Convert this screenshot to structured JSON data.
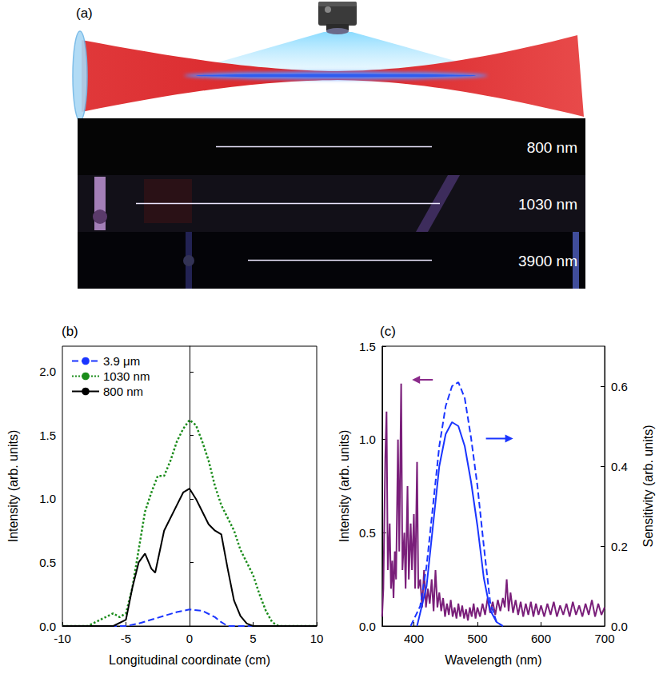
{
  "diagram": {
    "label": "(a)",
    "images": [
      {
        "label": "800 nm"
      },
      {
        "label": "1030 nm"
      },
      {
        "label": "3900 nm"
      }
    ]
  },
  "chart_data": [
    {
      "type": "line",
      "title": "(b)",
      "x_label": "Longitudinal coordinate (cm)",
      "y_label": "Intensity (arb. units)",
      "xlim": [
        -10,
        10
      ],
      "xticks": [
        -10,
        -5,
        0,
        5,
        10
      ],
      "ylim": [
        0,
        2.2
      ],
      "yticks": [
        {
          "value": 0,
          "label": "0.0"
        },
        {
          "value": 0.5,
          "label": "0.5"
        },
        {
          "value": 1,
          "label": "1.0"
        },
        {
          "value": 1.5,
          "label": "1.5"
        },
        {
          "value": 2,
          "label": "2.0"
        }
      ],
      "legend": "upper left",
      "series": [
        {
          "name": "3.9 μm",
          "color": "#1a35ff",
          "line_style": "dashed",
          "x": [
            -10,
            -5,
            -4,
            -3,
            -2,
            -1,
            0,
            1,
            2,
            2.5,
            3,
            10
          ],
          "values": [
            0,
            0,
            0.02,
            0.05,
            0.08,
            0.11,
            0.13,
            0.12,
            0.07,
            0.03,
            0,
            0
          ]
        },
        {
          "name": "1030 nm",
          "color": "#1a8c1a",
          "line_style": "dotted",
          "x": [
            -10,
            -8,
            -7,
            -6,
            -5.5,
            -5,
            -4.5,
            -4,
            -3.5,
            -3,
            -2.5,
            -2,
            -1.5,
            -1,
            -0.5,
            0,
            0.5,
            1,
            1.5,
            2,
            2.5,
            3,
            3.5,
            4,
            4.5,
            5,
            5.5,
            6,
            6.5,
            7,
            10
          ],
          "values": [
            0,
            0,
            0.05,
            0.1,
            0.07,
            0.1,
            0.3,
            0.6,
            0.9,
            1.05,
            1.18,
            1.18,
            1.3,
            1.45,
            1.55,
            1.62,
            1.58,
            1.45,
            1.3,
            1.1,
            0.95,
            0.85,
            0.75,
            0.6,
            0.5,
            0.4,
            0.25,
            0.12,
            0.03,
            0,
            0
          ]
        },
        {
          "name": "800 nm",
          "color": "#000000",
          "line_style": "solid",
          "x": [
            -10,
            -6,
            -5,
            -4.5,
            -4,
            -3.5,
            -3,
            -2.7,
            -2,
            -1,
            -0.5,
            0,
            0.5,
            1,
            1.5,
            2,
            2.5,
            3,
            3.5,
            4,
            4.5,
            5,
            10
          ],
          "values": [
            0,
            0,
            0.05,
            0.3,
            0.5,
            0.57,
            0.45,
            0.42,
            0.75,
            0.95,
            1.05,
            1.08,
            1.0,
            0.9,
            0.8,
            0.75,
            0.72,
            0.45,
            0.2,
            0.08,
            0.02,
            0,
            0
          ]
        }
      ]
    },
    {
      "type": "line",
      "title": "(c)",
      "x_label": "Wavelength (nm)",
      "y_label": "Intensity (arb. units)",
      "y2_label": "Sensitivity (arb. units)",
      "xlim": [
        350,
        700
      ],
      "xticks": [
        400,
        500,
        600,
        700
      ],
      "ylim": [
        0,
        1.5
      ],
      "yticks": [
        {
          "value": 0,
          "label": "0.0"
        },
        {
          "value": 0.5,
          "label": "0.5"
        },
        {
          "value": 1,
          "label": "1.0"
        },
        {
          "value": 1.5,
          "label": "1.5"
        }
      ],
      "y2lim": [
        0,
        0.7
      ],
      "y2ticks": [
        {
          "value": 0,
          "label": "0.0"
        },
        {
          "value": 0.2,
          "label": "0.2"
        },
        {
          "value": 0.4,
          "label": "0.4"
        },
        {
          "value": 0.6,
          "label": "0.6"
        }
      ],
      "series": [
        {
          "color": "#7a1f7a",
          "line_style": "solid",
          "x": [
            350,
            352,
            355,
            357,
            359,
            362,
            364,
            366,
            368,
            370,
            372,
            375,
            377,
            380,
            382,
            385,
            387,
            390,
            392,
            395,
            397,
            400,
            402,
            405,
            407,
            410,
            413,
            416,
            419,
            422,
            425,
            428,
            431,
            434,
            437,
            440,
            443,
            446,
            449,
            452,
            455,
            458,
            461,
            464,
            467,
            470,
            473,
            476,
            479,
            482,
            485,
            488,
            491,
            494,
            497,
            500,
            504,
            508,
            512,
            516,
            520,
            524,
            528,
            532,
            536,
            540,
            543,
            546,
            549,
            552,
            556,
            560,
            564,
            568,
            572,
            576,
            580,
            584,
            588,
            592,
            596,
            600,
            605,
            610,
            615,
            620,
            625,
            630,
            635,
            640,
            645,
            650,
            655,
            660,
            665,
            670,
            675,
            680,
            685,
            690,
            695,
            700
          ],
          "values": [
            0.05,
            0.2,
            0.9,
            1.15,
            0.3,
            0.55,
            0.2,
            0.35,
            0.15,
            0.4,
            0.25,
            1.0,
            0.4,
            1.3,
            0.3,
            0.5,
            0.2,
            0.75,
            0.25,
            0.55,
            0.3,
            0.6,
            0.2,
            0.88,
            0.2,
            0.25,
            0.1,
            0.3,
            0.1,
            0.2,
            0.12,
            0.25,
            0.08,
            0.3,
            0.1,
            0.18,
            0.08,
            0.15,
            0.05,
            0.12,
            0.06,
            0.14,
            0.05,
            0.1,
            0.04,
            0.12,
            0.05,
            0.11,
            0.04,
            0.09,
            0.03,
            0.1,
            0.05,
            0.12,
            0.04,
            0.1,
            0.05,
            0.12,
            0.06,
            0.15,
            0.07,
            0.13,
            0.06,
            0.14,
            0.08,
            0.15,
            0.1,
            0.25,
            0.08,
            0.18,
            0.07,
            0.14,
            0.06,
            0.13,
            0.05,
            0.12,
            0.06,
            0.13,
            0.05,
            0.12,
            0.06,
            0.11,
            0.05,
            0.12,
            0.06,
            0.13,
            0.05,
            0.11,
            0.06,
            0.12,
            0.05,
            0.13,
            0.06,
            0.11,
            0.05,
            0.12,
            0.06,
            0.14,
            0.05,
            0.12,
            0.06,
            0.1
          ]
        },
        {
          "color": "#1a35ff",
          "line_style": "solid",
          "axis": "y2",
          "x": [
            405,
            420,
            430,
            440,
            450,
            460,
            470,
            480,
            490,
            500,
            510,
            520,
            530,
            540
          ],
          "values": [
            0,
            0.1,
            0.25,
            0.4,
            0.48,
            0.51,
            0.5,
            0.45,
            0.36,
            0.25,
            0.12,
            0.04,
            0.01,
            0
          ]
        },
        {
          "color": "#1a35ff",
          "line_style": "dashed",
          "axis": "y2",
          "x": [
            395,
            410,
            420,
            430,
            440,
            450,
            460,
            470,
            480,
            490,
            500,
            510,
            520,
            530,
            540
          ],
          "values": [
            0,
            0.05,
            0.15,
            0.3,
            0.45,
            0.55,
            0.6,
            0.61,
            0.57,
            0.47,
            0.35,
            0.2,
            0.06,
            0.01,
            0
          ]
        }
      ]
    }
  ]
}
